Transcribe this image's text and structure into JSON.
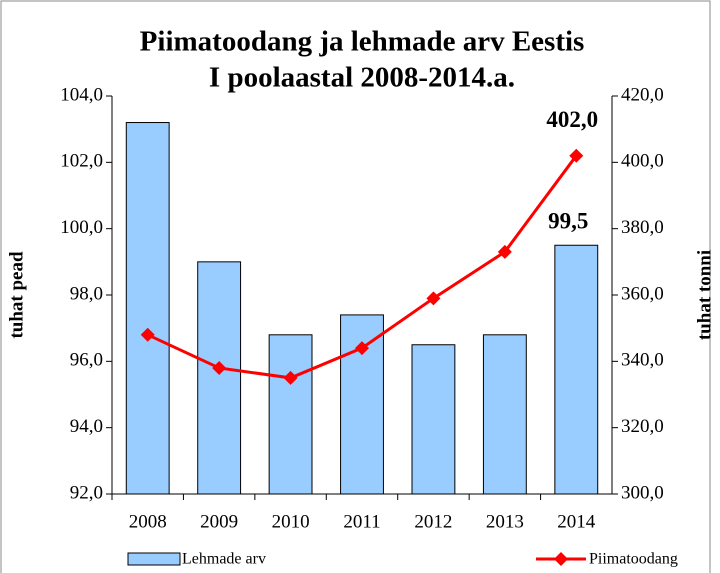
{
  "chart_data": {
    "type": "bar_line",
    "title": [
      "Piimatoodang ja lehmade arv Eestis",
      "I poolaastal 2008-2014.a."
    ],
    "ylabel": "tuhat pead",
    "y2label": "tuhat tonni",
    "categories": [
      "2008",
      "2009",
      "2010",
      "2011",
      "2012",
      "2013",
      "2014"
    ],
    "series": [
      {
        "name": "Lehmade arv",
        "type": "bar",
        "color": "#99ccff",
        "values": [
          103.2,
          99.0,
          96.8,
          97.4,
          96.5,
          96.8,
          99.5
        ],
        "value_labels": [
          null,
          null,
          null,
          null,
          null,
          null,
          "99,5"
        ]
      },
      {
        "name": "Piimatoodang",
        "type": "line",
        "axis": "y2",
        "color": "#ff0000",
        "values": [
          348,
          338,
          335,
          344,
          359,
          373,
          402
        ],
        "value_labels": [
          null,
          null,
          null,
          null,
          null,
          null,
          "402,0"
        ]
      }
    ],
    "ylim": [
      92,
      104
    ],
    "yticks": [
      {
        "value": 92,
        "label": "92,0"
      },
      {
        "value": 94,
        "label": "94,0"
      },
      {
        "value": 96,
        "label": "96,0"
      },
      {
        "value": 98,
        "label": "98,0"
      },
      {
        "value": 100,
        "label": "100,0"
      },
      {
        "value": 102,
        "label": "102,0"
      },
      {
        "value": 104,
        "label": "104,0"
      }
    ],
    "y2lim": [
      300,
      420
    ],
    "y2ticks": [
      {
        "value": 300,
        "label": "300,0"
      },
      {
        "value": 320,
        "label": "320,0"
      },
      {
        "value": 340,
        "label": "340,0"
      },
      {
        "value": 360,
        "label": "360,0"
      },
      {
        "value": 380,
        "label": "380,0"
      },
      {
        "value": 400,
        "label": "400,0"
      },
      {
        "value": 420,
        "label": "420,0"
      }
    ]
  }
}
